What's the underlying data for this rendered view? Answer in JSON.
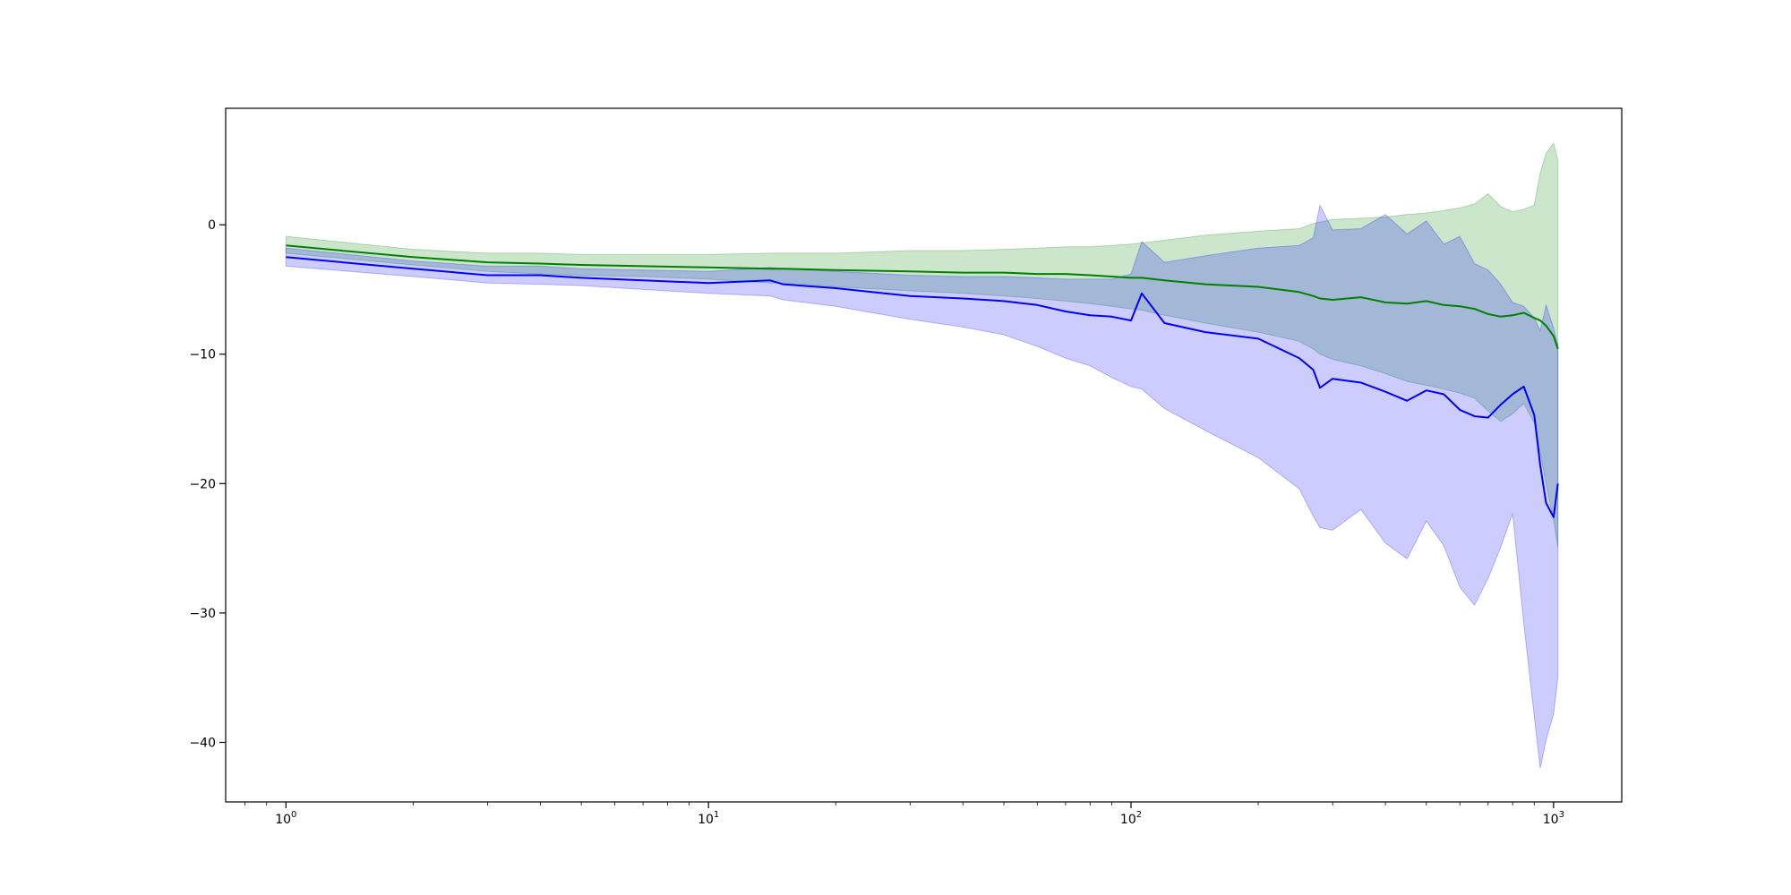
{
  "chart_data": {
    "type": "line",
    "title": "",
    "xlabel": "",
    "ylabel": "",
    "xscale": "log",
    "xlim": [
      0.72,
      1450
    ],
    "ylim": [
      -44.6,
      9.0
    ],
    "grid": false,
    "legend": "none",
    "x_ticks": [
      {
        "base": "10",
        "exp": "0",
        "value": 1
      },
      {
        "base": "10",
        "exp": "1",
        "value": 10
      },
      {
        "base": "10",
        "exp": "2",
        "value": 100
      },
      {
        "base": "10",
        "exp": "3",
        "value": 1000
      }
    ],
    "y_ticks": [
      {
        "label": "0",
        "value": 0
      },
      {
        "label": "−10",
        "value": -10
      },
      {
        "label": "−20",
        "value": -20
      },
      {
        "label": "−30",
        "value": -30
      },
      {
        "label": "−40",
        "value": -40
      }
    ],
    "x": [
      1,
      2,
      3,
      4,
      5,
      7,
      10,
      14,
      15,
      20,
      30,
      40,
      50,
      60,
      70,
      80,
      90,
      100,
      106,
      120,
      150,
      200,
      250,
      270,
      280,
      300,
      350,
      400,
      450,
      500,
      550,
      600,
      650,
      700,
      750,
      800,
      850,
      900,
      930,
      960,
      1000,
      1024
    ],
    "series": [
      {
        "color": "#008000",
        "band_color": "#008000",
        "mean": [
          -1.6,
          -2.5,
          -2.9,
          -3.0,
          -3.1,
          -3.2,
          -3.3,
          -3.4,
          -3.4,
          -3.5,
          -3.6,
          -3.7,
          -3.7,
          -3.8,
          -3.8,
          -3.9,
          -4.0,
          -4.1,
          -4.1,
          -4.3,
          -4.6,
          -4.8,
          -5.2,
          -5.5,
          -5.7,
          -5.8,
          -5.6,
          -6.0,
          -6.1,
          -5.9,
          -6.2,
          -6.3,
          -6.5,
          -6.9,
          -7.1,
          -7.0,
          -6.8,
          -7.2,
          -7.4,
          -7.8,
          -8.6,
          -9.6
        ],
        "upper": [
          -0.9,
          -1.9,
          -2.2,
          -2.2,
          -2.3,
          -2.3,
          -2.3,
          -2.2,
          -2.2,
          -2.2,
          -2.0,
          -2.0,
          -1.9,
          -1.8,
          -1.7,
          -1.7,
          -1.6,
          -1.5,
          -1.4,
          -1.2,
          -0.8,
          -0.5,
          -0.3,
          0.1,
          0.2,
          0.4,
          0.5,
          0.6,
          0.8,
          0.9,
          1.1,
          1.3,
          1.6,
          2.4,
          1.4,
          1.0,
          1.2,
          1.5,
          4.0,
          5.5,
          6.3,
          5.0
        ],
        "lower": [
          -2.2,
          -3.1,
          -3.6,
          -3.8,
          -3.9,
          -4.0,
          -4.2,
          -4.5,
          -4.5,
          -4.8,
          -5.1,
          -5.3,
          -5.5,
          -5.7,
          -5.9,
          -6.1,
          -6.3,
          -6.5,
          -6.6,
          -7.0,
          -7.6,
          -8.3,
          -9.0,
          -9.6,
          -10.0,
          -10.4,
          -10.9,
          -11.5,
          -12.1,
          -12.4,
          -12.7,
          -13.0,
          -13.4,
          -14.4,
          -15.2,
          -14.6,
          -13.8,
          -15.3,
          -17.6,
          -20.0,
          -22.8,
          -24.9
        ]
      },
      {
        "color": "#0000ff",
        "band_color": "#0000ff",
        "mean": [
          -2.5,
          -3.4,
          -3.9,
          -3.9,
          -4.1,
          -4.3,
          -4.5,
          -4.3,
          -4.6,
          -4.9,
          -5.5,
          -5.7,
          -5.9,
          -6.2,
          -6.7,
          -7.0,
          -7.1,
          -7.4,
          -5.3,
          -7.6,
          -8.3,
          -8.8,
          -10.3,
          -11.2,
          -12.6,
          -11.9,
          -12.2,
          -12.9,
          -13.6,
          -12.8,
          -13.1,
          -14.3,
          -14.8,
          -14.9,
          -13.9,
          -13.1,
          -12.5,
          -14.7,
          -18.6,
          -21.5,
          -22.6,
          -20.0
        ],
        "upper": [
          -1.8,
          -2.8,
          -3.2,
          -3.2,
          -3.4,
          -3.5,
          -3.6,
          -3.3,
          -3.4,
          -3.6,
          -3.9,
          -4.0,
          -4.0,
          -4.1,
          -4.2,
          -4.2,
          -4.2,
          -3.8,
          -1.3,
          -2.9,
          -2.4,
          -1.8,
          -1.6,
          -1.0,
          1.5,
          -0.4,
          -0.3,
          0.8,
          -0.7,
          0.3,
          -1.5,
          -0.9,
          -3.0,
          -3.5,
          -4.6,
          -6.0,
          -6.3,
          -7.2,
          -8.2,
          -6.2,
          -8.0,
          -9.3
        ],
        "lower": [
          -3.2,
          -4.0,
          -4.5,
          -4.6,
          -4.7,
          -5.0,
          -5.3,
          -5.5,
          -5.8,
          -6.3,
          -7.3,
          -7.9,
          -8.5,
          -9.4,
          -10.3,
          -10.9,
          -11.8,
          -12.5,
          -12.7,
          -14.2,
          -15.9,
          -18.0,
          -20.4,
          -22.5,
          -23.4,
          -23.6,
          -22.0,
          -24.6,
          -25.8,
          -22.9,
          -24.8,
          -28.0,
          -29.4,
          -27.3,
          -24.9,
          -22.3,
          -30.8,
          -38.0,
          -42.0,
          -39.8,
          -37.8,
          -35.0
        ]
      }
    ]
  }
}
